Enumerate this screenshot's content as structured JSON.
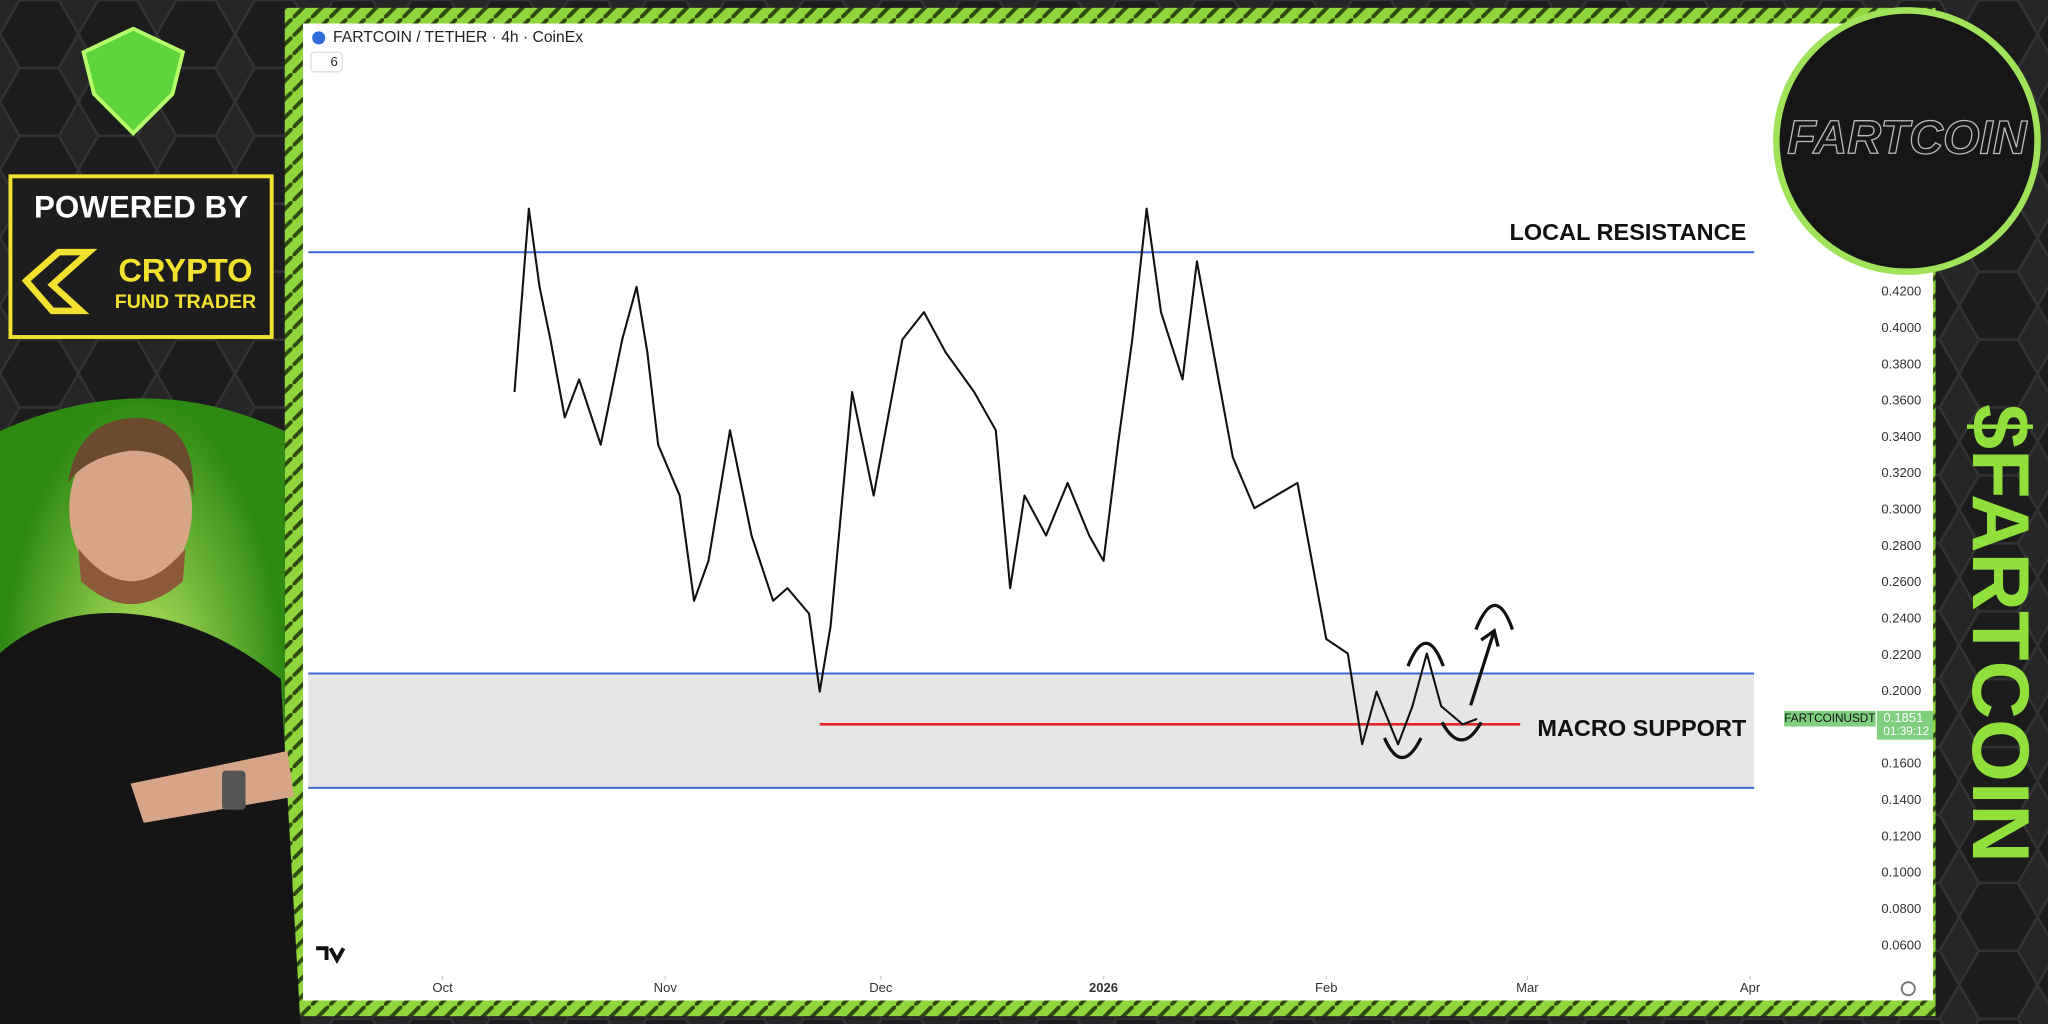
{
  "chart_data": {
    "type": "line",
    "title": "FARTCOIN / TETHER · 4h · CoinEx",
    "indicator_count": "6",
    "x": [
      10,
      12,
      13.5,
      15,
      17,
      19,
      22,
      25,
      27,
      28.5,
      30,
      33,
      35,
      37,
      40,
      43,
      46,
      48,
      51,
      52.5,
      54,
      57,
      60,
      64,
      67,
      70,
      74,
      77,
      79,
      81,
      84,
      87,
      90,
      92,
      94,
      96,
      98,
      100,
      103,
      105,
      108,
      110,
      113,
      116,
      119,
      121,
      123,
      126,
      128,
      130,
      133,
      135,
      137,
      139,
      142,
      144
    ],
    "series": [
      {
        "color": "#111111",
        "values": [
          0.365,
          0.466,
          0.423,
          0.394,
          0.351,
          0.372,
          0.336,
          0.394,
          0.423,
          0.387,
          0.336,
          0.308,
          0.25,
          0.272,
          0.344,
          0.286,
          0.25,
          0.257,
          0.243,
          0.2,
          0.236,
          0.365,
          0.308,
          0.394,
          0.409,
          0.387,
          0.365,
          0.344,
          0.257,
          0.308,
          0.286,
          0.315,
          0.286,
          0.272,
          0.336,
          0.394,
          0.466,
          0.409,
          0.372,
          0.437,
          0.372,
          0.329,
          0.301,
          0.308,
          0.315,
          0.272,
          0.229,
          0.221,
          0.171,
          0.2,
          0.171,
          0.192,
          0.221,
          0.192,
          0.182,
          0.185
        ]
      }
    ],
    "xlim": [
      -18.7,
      200.2
    ],
    "xticks": [
      {
        "value": 0,
        "label": "Oct"
      },
      {
        "value": 31,
        "label": "Nov"
      },
      {
        "value": 61,
        "label": "Dec"
      },
      {
        "value": 92,
        "label": "2026"
      },
      {
        "value": 123,
        "label": "Feb"
      },
      {
        "value": 151,
        "label": "Mar"
      },
      {
        "value": 182,
        "label": "Apr"
      }
    ],
    "ylim": [
      0.045,
      0.568
    ],
    "yticks": [
      {
        "value": 0.06,
        "label": "0.0600"
      },
      {
        "value": 0.08,
        "label": "0.0800"
      },
      {
        "value": 0.1,
        "label": "0.1000"
      },
      {
        "value": 0.12,
        "label": "0.1200"
      },
      {
        "value": 0.14,
        "label": "0.1400"
      },
      {
        "value": 0.16,
        "label": "0.1600"
      },
      {
        "value": 0.18,
        "label": "0.1800"
      },
      {
        "value": 0.2,
        "label": "0.2000"
      },
      {
        "value": 0.22,
        "label": "0.2200"
      },
      {
        "value": 0.24,
        "label": "0.2400"
      },
      {
        "value": 0.26,
        "label": "0.2600"
      },
      {
        "value": 0.28,
        "label": "0.2800"
      },
      {
        "value": 0.3,
        "label": "0.3000"
      },
      {
        "value": 0.32,
        "label": "0.3200"
      },
      {
        "value": 0.34,
        "label": "0.3400"
      },
      {
        "value": 0.36,
        "label": "0.3600"
      },
      {
        "value": 0.38,
        "label": "0.3800"
      },
      {
        "value": 0.4,
        "label": "0.4000"
      },
      {
        "value": 0.42,
        "label": "0.4200"
      }
    ],
    "grid": false,
    "levels": [
      {
        "label": "LOCAL RESISTANCE",
        "value": 0.442,
        "color": "#3c6ad8"
      }
    ],
    "zones": [
      {
        "label": "MACRO SUPPORT",
        "from": 0.147,
        "to": 0.21,
        "color": "#3c6ad8",
        "fill": "#e6e6e6"
      }
    ],
    "support_line": {
      "value": 0.182,
      "x": [
        52.5,
        150
      ],
      "color": "#e0262b"
    },
    "last_price": {
      "symbol": "FARTCOINUSDT",
      "value": 0.1851,
      "countdown": "01:39:12",
      "color": "#7ecf7e"
    }
  },
  "branding": {
    "powered_by": "POWERED BY",
    "brand_line1": "CRYPTO",
    "brand_line2": "FUND TRADER",
    "ticker": "$FARTCOIN",
    "badge": "FARTCOIN"
  }
}
